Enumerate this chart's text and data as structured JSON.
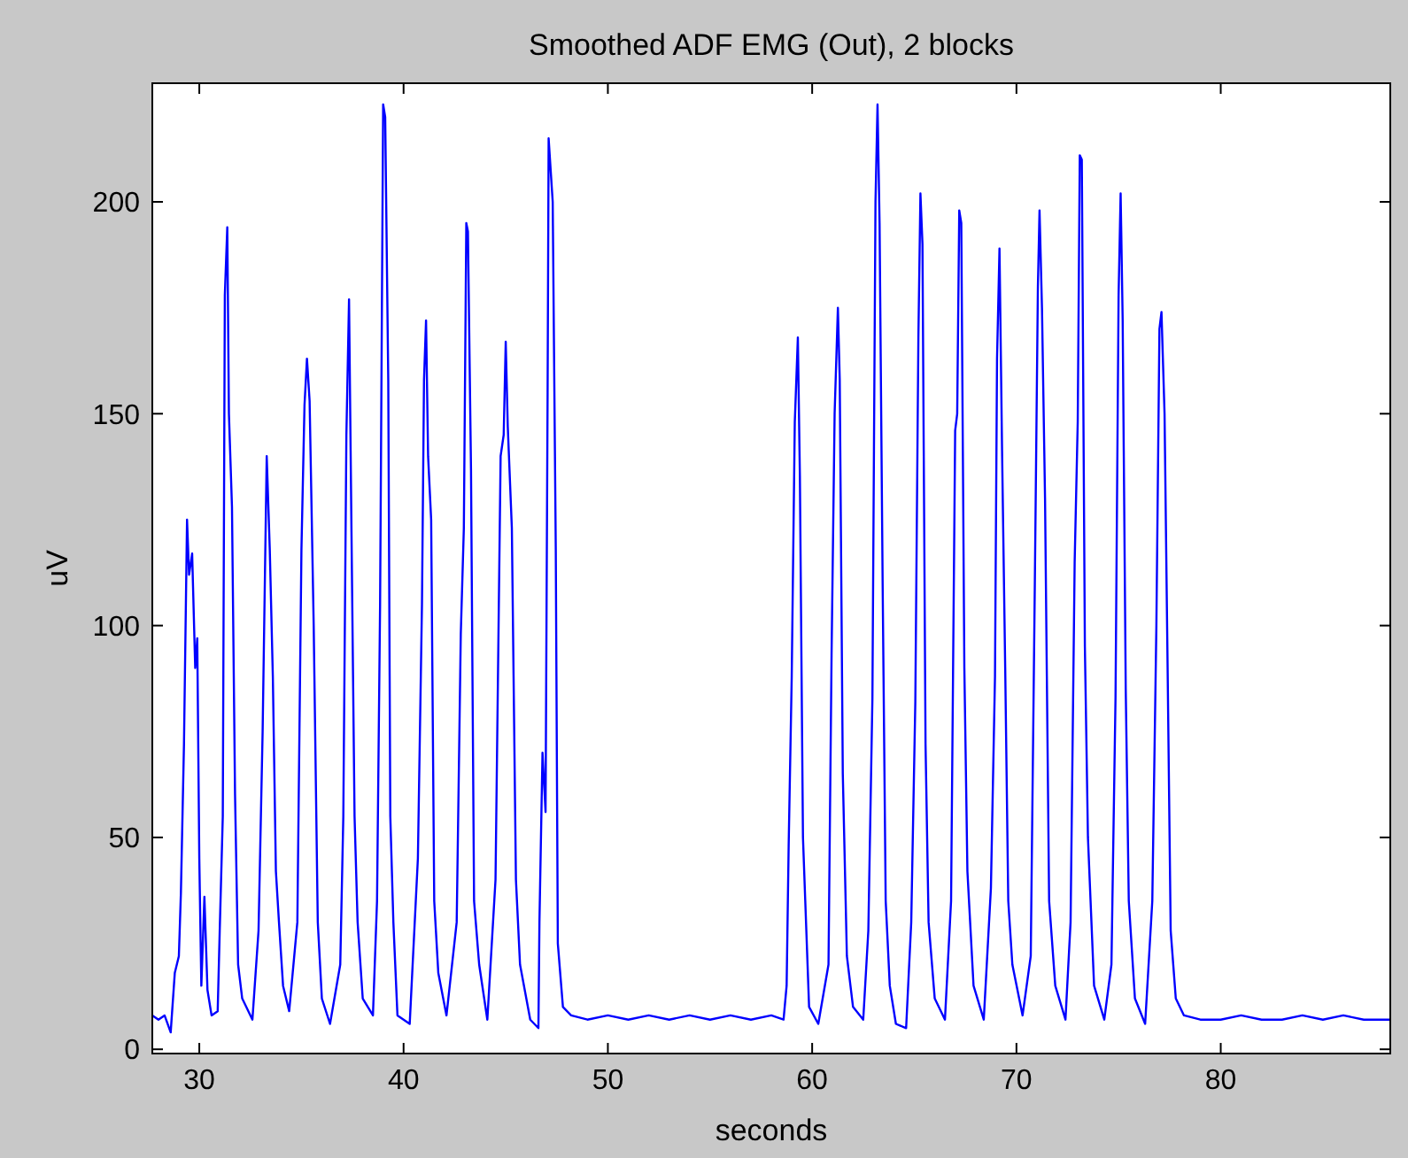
{
  "chart_data": {
    "type": "line",
    "title": "Smoothed ADF EMG (Out), 2 blocks",
    "xlabel": "seconds",
    "ylabel": "uV",
    "xlim": [
      27.7,
      88.3
    ],
    "ylim": [
      -1,
      228
    ],
    "xticks": [
      30,
      40,
      50,
      60,
      70,
      80
    ],
    "yticks": [
      0,
      50,
      100,
      150,
      200
    ],
    "marker": "none",
    "line_style": "solid",
    "series": [
      {
        "color": "#0000ff",
        "x": [
          27.7,
          28.0,
          28.3,
          28.6,
          28.8,
          29.0,
          29.1,
          29.25,
          29.4,
          29.5,
          29.65,
          29.8,
          29.9,
          30.0,
          30.1,
          30.25,
          30.4,
          30.6,
          30.9,
          31.0,
          31.15,
          31.25,
          31.37,
          31.45,
          31.6,
          31.75,
          31.9,
          32.1,
          32.6,
          32.9,
          33.1,
          33.3,
          33.45,
          33.6,
          33.75,
          33.9,
          34.1,
          34.4,
          34.8,
          35.0,
          35.15,
          35.27,
          35.4,
          35.6,
          35.8,
          36.0,
          36.4,
          36.9,
          37.05,
          37.2,
          37.33,
          37.45,
          37.6,
          37.75,
          38.0,
          38.5,
          38.7,
          38.85,
          39.0,
          39.1,
          39.25,
          39.35,
          39.5,
          39.7,
          40.3,
          40.7,
          40.9,
          41.0,
          41.1,
          41.2,
          41.35,
          41.5,
          41.7,
          42.1,
          42.6,
          42.8,
          42.95,
          43.07,
          43.15,
          43.3,
          43.45,
          43.7,
          44.1,
          44.5,
          44.75,
          44.9,
          45.0,
          45.1,
          45.3,
          45.5,
          45.7,
          46.2,
          46.6,
          46.65,
          46.8,
          46.95,
          47.05,
          47.1,
          47.3,
          47.45,
          47.55,
          47.8,
          48.2,
          49,
          50,
          51,
          52,
          53,
          54,
          55,
          56,
          57,
          58,
          58.6,
          58.75,
          58.85,
          59.0,
          59.15,
          59.3,
          59.4,
          59.55,
          59.7,
          59.85,
          60.3,
          60.8,
          60.95,
          61.1,
          61.26,
          61.35,
          61.5,
          61.7,
          62.0,
          62.5,
          62.75,
          62.95,
          63.1,
          63.2,
          63.3,
          63.45,
          63.6,
          63.8,
          64.1,
          64.6,
          64.85,
          65.05,
          65.2,
          65.3,
          65.4,
          65.55,
          65.7,
          66.0,
          66.5,
          66.8,
          67.0,
          67.1,
          67.2,
          67.3,
          67.45,
          67.6,
          67.9,
          68.4,
          68.75,
          68.95,
          69.05,
          69.17,
          69.3,
          69.45,
          69.6,
          69.8,
          70.3,
          70.7,
          70.9,
          71.05,
          71.13,
          71.25,
          71.4,
          71.6,
          71.9,
          72.4,
          72.65,
          72.85,
          73.0,
          73.1,
          73.2,
          73.35,
          73.5,
          73.8,
          74.3,
          74.65,
          74.85,
          75.0,
          75.1,
          75.2,
          75.35,
          75.5,
          75.8,
          76.3,
          76.65,
          76.85,
          77.0,
          77.1,
          77.25,
          77.4,
          77.55,
          77.8,
          78.2,
          79,
          80,
          81,
          82,
          83,
          84,
          85,
          86,
          87,
          88.3
        ],
        "values": [
          8,
          7,
          8,
          4,
          18,
          22,
          37,
          72,
          125,
          112,
          117,
          90,
          97,
          45,
          15,
          36,
          14,
          8,
          9,
          28,
          55,
          178,
          194,
          150,
          128,
          60,
          20,
          12,
          7,
          28,
          75,
          140,
          118,
          88,
          42,
          30,
          15,
          9,
          30,
          118,
          152,
          163,
          153,
          100,
          30,
          12,
          6,
          20,
          55,
          145,
          177,
          122,
          55,
          30,
          12,
          8,
          35,
          105,
          223,
          220,
          158,
          55,
          30,
          8,
          6,
          45,
          105,
          158,
          172,
          140,
          125,
          35,
          18,
          8,
          30,
          98,
          123,
          195,
          193,
          137,
          35,
          20,
          7,
          40,
          140,
          145,
          167,
          147,
          123,
          40,
          20,
          7,
          5,
          30,
          70,
          56,
          155,
          215,
          200,
          118,
          25,
          10,
          8,
          7,
          8,
          7,
          8,
          7,
          8,
          7,
          8,
          7,
          8,
          7,
          15,
          48,
          88,
          148,
          168,
          135,
          50,
          30,
          10,
          6,
          20,
          93,
          150,
          175,
          158,
          65,
          22,
          10,
          7,
          28,
          83,
          200,
          223,
          195,
          110,
          35,
          15,
          6,
          5,
          30,
          82,
          168,
          202,
          190,
          72,
          30,
          12,
          7,
          35,
          146,
          150,
          198,
          195,
          90,
          42,
          15,
          7,
          38,
          88,
          163,
          189,
          140,
          90,
          35,
          20,
          8,
          22,
          110,
          180,
          198,
          175,
          130,
          35,
          15,
          7,
          30,
          115,
          148,
          211,
          210,
          95,
          50,
          15,
          7,
          20,
          83,
          178,
          202,
          172,
          85,
          35,
          12,
          6,
          35,
          100,
          170,
          174,
          150,
          90,
          28,
          12,
          8,
          7,
          7,
          8,
          7,
          7,
          8,
          7,
          8,
          7,
          7
        ]
      }
    ]
  }
}
